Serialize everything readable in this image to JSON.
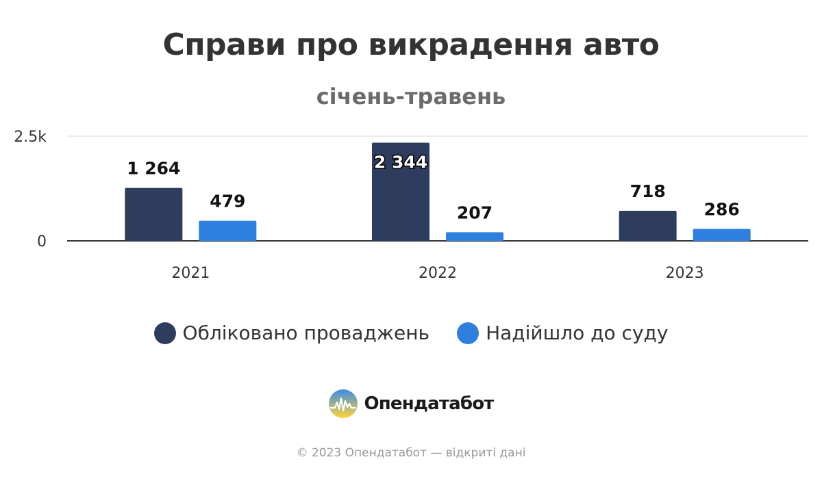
{
  "chart_data": {
    "type": "bar",
    "title": "Справи про викрадення авто",
    "subtitle": "січень-травень",
    "categories": [
      "2021",
      "2022",
      "2023"
    ],
    "series": [
      {
        "name": "Обліковано проваджень",
        "values": [
          1264,
          2344,
          718
        ],
        "labels": [
          "1 264",
          "2 344",
          "718"
        ],
        "color": "#2e3d5e"
      },
      {
        "name": "Надійшло до суду",
        "values": [
          479,
          207,
          286
        ],
        "labels": [
          "479",
          "207",
          "286"
        ],
        "color": "#2f80de"
      }
    ],
    "ylim": [
      0,
      2500
    ],
    "yticks": [
      {
        "value": 0,
        "label": "0"
      },
      {
        "value": 2500,
        "label": "2.5k"
      }
    ],
    "grid": true,
    "legend_position": "bottom"
  },
  "brand": {
    "name": "Опендатабот"
  },
  "footer": {
    "text": "© 2023 Опендатабот — відкриті дані"
  }
}
